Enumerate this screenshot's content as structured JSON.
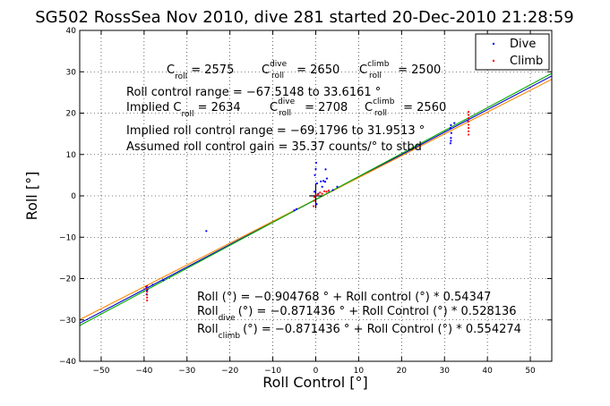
{
  "chart_data": {
    "type": "scatter",
    "title": "SG502 RossSea Nov 2010, dive 281 started 20-Dec-2010 21:28:59",
    "xlabel": "Roll Control [°]",
    "ylabel": "Roll [°]",
    "xlim": [
      -55,
      55
    ],
    "ylim": [
      -40,
      40
    ],
    "xticks": [
      -50,
      -40,
      -30,
      -20,
      -10,
      0,
      10,
      20,
      30,
      40,
      50
    ],
    "yticks": [
      -40,
      -30,
      -20,
      -10,
      0,
      10,
      20,
      30,
      40
    ],
    "xtick_labels": [
      "−50",
      "−40",
      "−30",
      "−20",
      "−10",
      "0",
      "10",
      "20",
      "30",
      "40",
      "50"
    ],
    "ytick_labels": [
      "−40",
      "−30",
      "−20",
      "−10",
      "0",
      "10",
      "20",
      "30",
      "40"
    ],
    "grid": true,
    "legend_position": "top-right",
    "legend": [
      {
        "label": "Dive",
        "color": "#0000ff"
      },
      {
        "label": "Climb",
        "color": "#ff0000"
      }
    ],
    "series": [
      {
        "name": "Dive",
        "color": "#0000ff",
        "points": [
          [
            -39.5,
            -22
          ],
          [
            -39.3,
            -23
          ],
          [
            -39.4,
            -23.8
          ],
          [
            -39.2,
            -22.6
          ],
          [
            -38,
            -21.5
          ],
          [
            -35.5,
            -20.4
          ],
          [
            -25.5,
            -8.5
          ],
          [
            -5,
            -3.5
          ],
          [
            -4.5,
            -3.2
          ],
          [
            -0.3,
            1
          ],
          [
            -0.2,
            5
          ],
          [
            0.1,
            8
          ],
          [
            0,
            6.5
          ],
          [
            0.3,
            3
          ],
          [
            0.2,
            -2
          ],
          [
            0.6,
            0.5
          ],
          [
            1.2,
            3.5
          ],
          [
            1.5,
            2.2
          ],
          [
            1.8,
            3.6
          ],
          [
            2.2,
            3.4
          ],
          [
            2.6,
            4.2
          ],
          [
            2.3,
            6.4
          ],
          [
            3,
            1.2
          ],
          [
            4,
            1.4
          ],
          [
            5,
            2.2
          ],
          [
            31.4,
            12.7
          ],
          [
            31.5,
            13.3
          ],
          [
            31.5,
            14
          ],
          [
            31.6,
            15.2
          ],
          [
            31.4,
            16.4
          ],
          [
            31.5,
            17.1
          ],
          [
            32.3,
            17.6
          ],
          [
            35.5,
            18
          ]
        ]
      },
      {
        "name": "Climb",
        "color": "#ff0000",
        "points": [
          [
            -39.3,
            -21.8
          ],
          [
            -39.3,
            -22.5
          ],
          [
            -39.3,
            -23.2
          ],
          [
            -39.3,
            -23.9
          ],
          [
            -39.3,
            -24.6
          ],
          [
            -39.3,
            -25.3
          ],
          [
            -0.5,
            -2.5
          ],
          [
            -0.4,
            -1.2
          ],
          [
            -0.3,
            -0.3
          ],
          [
            0,
            0.2
          ],
          [
            0.5,
            0.4
          ],
          [
            1,
            0.8
          ],
          [
            1.5,
            0.5
          ],
          [
            2,
            1.1
          ],
          [
            2.5,
            1
          ],
          [
            3,
            1.3
          ],
          [
            35.6,
            14.8
          ],
          [
            35.6,
            15.6
          ],
          [
            35.6,
            16.4
          ],
          [
            35.6,
            17.2
          ],
          [
            35.6,
            18
          ],
          [
            35.6,
            18.8
          ],
          [
            35.6,
            19.6
          ],
          [
            35.6,
            20.3
          ]
        ]
      }
    ],
    "fit_lines": [
      {
        "color": "#0000cc",
        "intercept": -0.904768,
        "slope": 0.54347
      },
      {
        "color": "#ff8800",
        "intercept": -0.871436,
        "slope": 0.528136
      },
      {
        "color": "#00aa00",
        "intercept": -0.871436,
        "slope": 0.554274
      }
    ],
    "annotations": {
      "c_roll_line": {
        "c_main": "C",
        "c_sub": "roll",
        "c_val": " = 2575",
        "d_main": "C",
        "d_sup": "dive",
        "d_sub": "roll",
        "d_val": " = 2650",
        "cl_main": "C",
        "cl_sup": "climb",
        "cl_sub": "roll",
        "cl_val": " = 2500"
      },
      "control_range": "Roll control range = −67.5148 to 33.6161 °",
      "implied_line": {
        "prefix": "Implied C",
        "sub": "roll",
        "val": " = 2634",
        "d_main": "C",
        "d_sup": "dive",
        "d_sub": "roll",
        "d_val": " = 2708",
        "cl_main": "C",
        "cl_sup": "climb",
        "cl_sub": "roll",
        "cl_val": " = 2560"
      },
      "implied_range": "Implied roll control range = −69.1796 to 31.9513 °",
      "gain": "Assumed roll control gain = 35.37 counts/° to stbd",
      "fit_all": "Roll (°) = −0.904768 ° + Roll control (°) * 0.54347",
      "fit_dive": {
        "prefix": "Roll",
        "sub": "dive",
        "rest": "(°) = −0.871436 ° + Roll Control (°) * 0.528136"
      },
      "fit_climb": {
        "prefix": "Roll",
        "sub": "climb",
        "rest": "(°) = −0.871436 ° + Roll Control (°) * 0.554274"
      }
    }
  }
}
